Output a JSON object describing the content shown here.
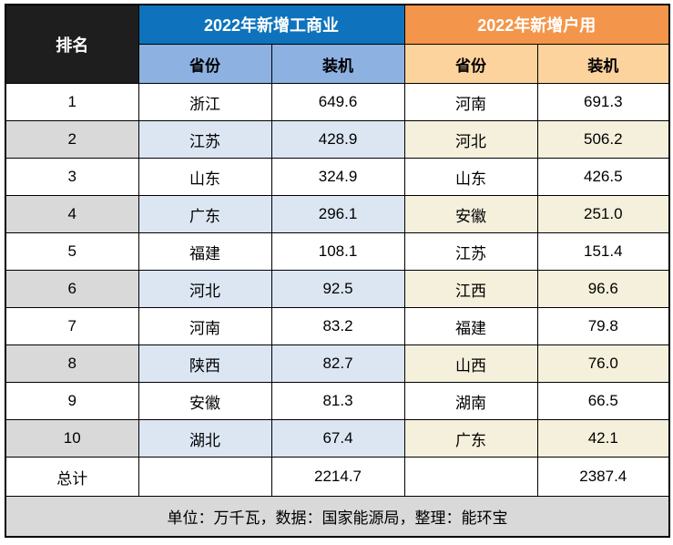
{
  "colors": {
    "rank_header_bg": "#1E1E1E",
    "group1_bg": "#0E73BC",
    "group2_bg": "#F3964B",
    "subheader1_bg": "#8DB1E1",
    "subheader2_bg": "#FCD39C",
    "stripe_rank_bg": "#D9D9D9",
    "stripe_blue_bg": "#DCE6F3",
    "stripe_cream_bg": "#F5F0DC",
    "footer_bg": "#D9D9D9",
    "border": "#000000"
  },
  "header": {
    "rank_label": "排名",
    "groups": [
      {
        "title": "2022年新增工商业",
        "province_label": "省份",
        "capacity_label": "装机"
      },
      {
        "title": "2022年新增户用",
        "province_label": "省份",
        "capacity_label": "装机"
      }
    ]
  },
  "rows": [
    {
      "rank": "1",
      "commercial_province": "浙江",
      "commercial_capacity": "649.6",
      "residential_province": "河南",
      "residential_capacity": "691.3"
    },
    {
      "rank": "2",
      "commercial_province": "江苏",
      "commercial_capacity": "428.9",
      "residential_province": "河北",
      "residential_capacity": "506.2"
    },
    {
      "rank": "3",
      "commercial_province": "山东",
      "commercial_capacity": "324.9",
      "residential_province": "山东",
      "residential_capacity": "426.5"
    },
    {
      "rank": "4",
      "commercial_province": "广东",
      "commercial_capacity": "296.1",
      "residential_province": "安徽",
      "residential_capacity": "251.0"
    },
    {
      "rank": "5",
      "commercial_province": "福建",
      "commercial_capacity": "108.1",
      "residential_province": "江苏",
      "residential_capacity": "151.4"
    },
    {
      "rank": "6",
      "commercial_province": "河北",
      "commercial_capacity": "92.5",
      "residential_province": "江西",
      "residential_capacity": "96.6"
    },
    {
      "rank": "7",
      "commercial_province": "河南",
      "commercial_capacity": "83.2",
      "residential_province": "福建",
      "residential_capacity": "79.8"
    },
    {
      "rank": "8",
      "commercial_province": "陕西",
      "commercial_capacity": "82.7",
      "residential_province": "山西",
      "residential_capacity": "76.0"
    },
    {
      "rank": "9",
      "commercial_province": "安徽",
      "commercial_capacity": "81.3",
      "residential_province": "湖南",
      "residential_capacity": "66.5"
    },
    {
      "rank": "10",
      "commercial_province": "湖北",
      "commercial_capacity": "67.4",
      "residential_province": "广东",
      "residential_capacity": "42.1"
    }
  ],
  "total_row": {
    "label": "总计",
    "commercial_total": "2214.7",
    "residential_total": "2387.4"
  },
  "footer": {
    "note": "单位：万千瓦，数据：国家能源局，整理：能环宝"
  },
  "chart_data": {
    "type": "table",
    "title": "2022年新增工商业与新增户用装机排名",
    "unit": "万千瓦",
    "columns": [
      "排名",
      "2022年新增工商业 省份",
      "2022年新增工商业 装机",
      "2022年新增户用 省份",
      "2022年新增户用 装机"
    ],
    "rows": [
      [
        1,
        "浙江",
        649.6,
        "河南",
        691.3
      ],
      [
        2,
        "江苏",
        428.9,
        "河北",
        506.2
      ],
      [
        3,
        "山东",
        324.9,
        "山东",
        426.5
      ],
      [
        4,
        "广东",
        296.1,
        "安徽",
        251.0
      ],
      [
        5,
        "福建",
        108.1,
        "江苏",
        151.4
      ],
      [
        6,
        "河北",
        92.5,
        "江西",
        96.6
      ],
      [
        7,
        "河南",
        83.2,
        "福建",
        79.8
      ],
      [
        8,
        "陕西",
        82.7,
        "山西",
        76.0
      ],
      [
        9,
        "安徽",
        81.3,
        "湖南",
        66.5
      ],
      [
        10,
        "湖北",
        67.4,
        "广东",
        42.1
      ]
    ],
    "totals": {
      "commercial": 2214.7,
      "residential": 2387.4
    },
    "source": "国家能源局",
    "compiled_by": "能环宝"
  }
}
